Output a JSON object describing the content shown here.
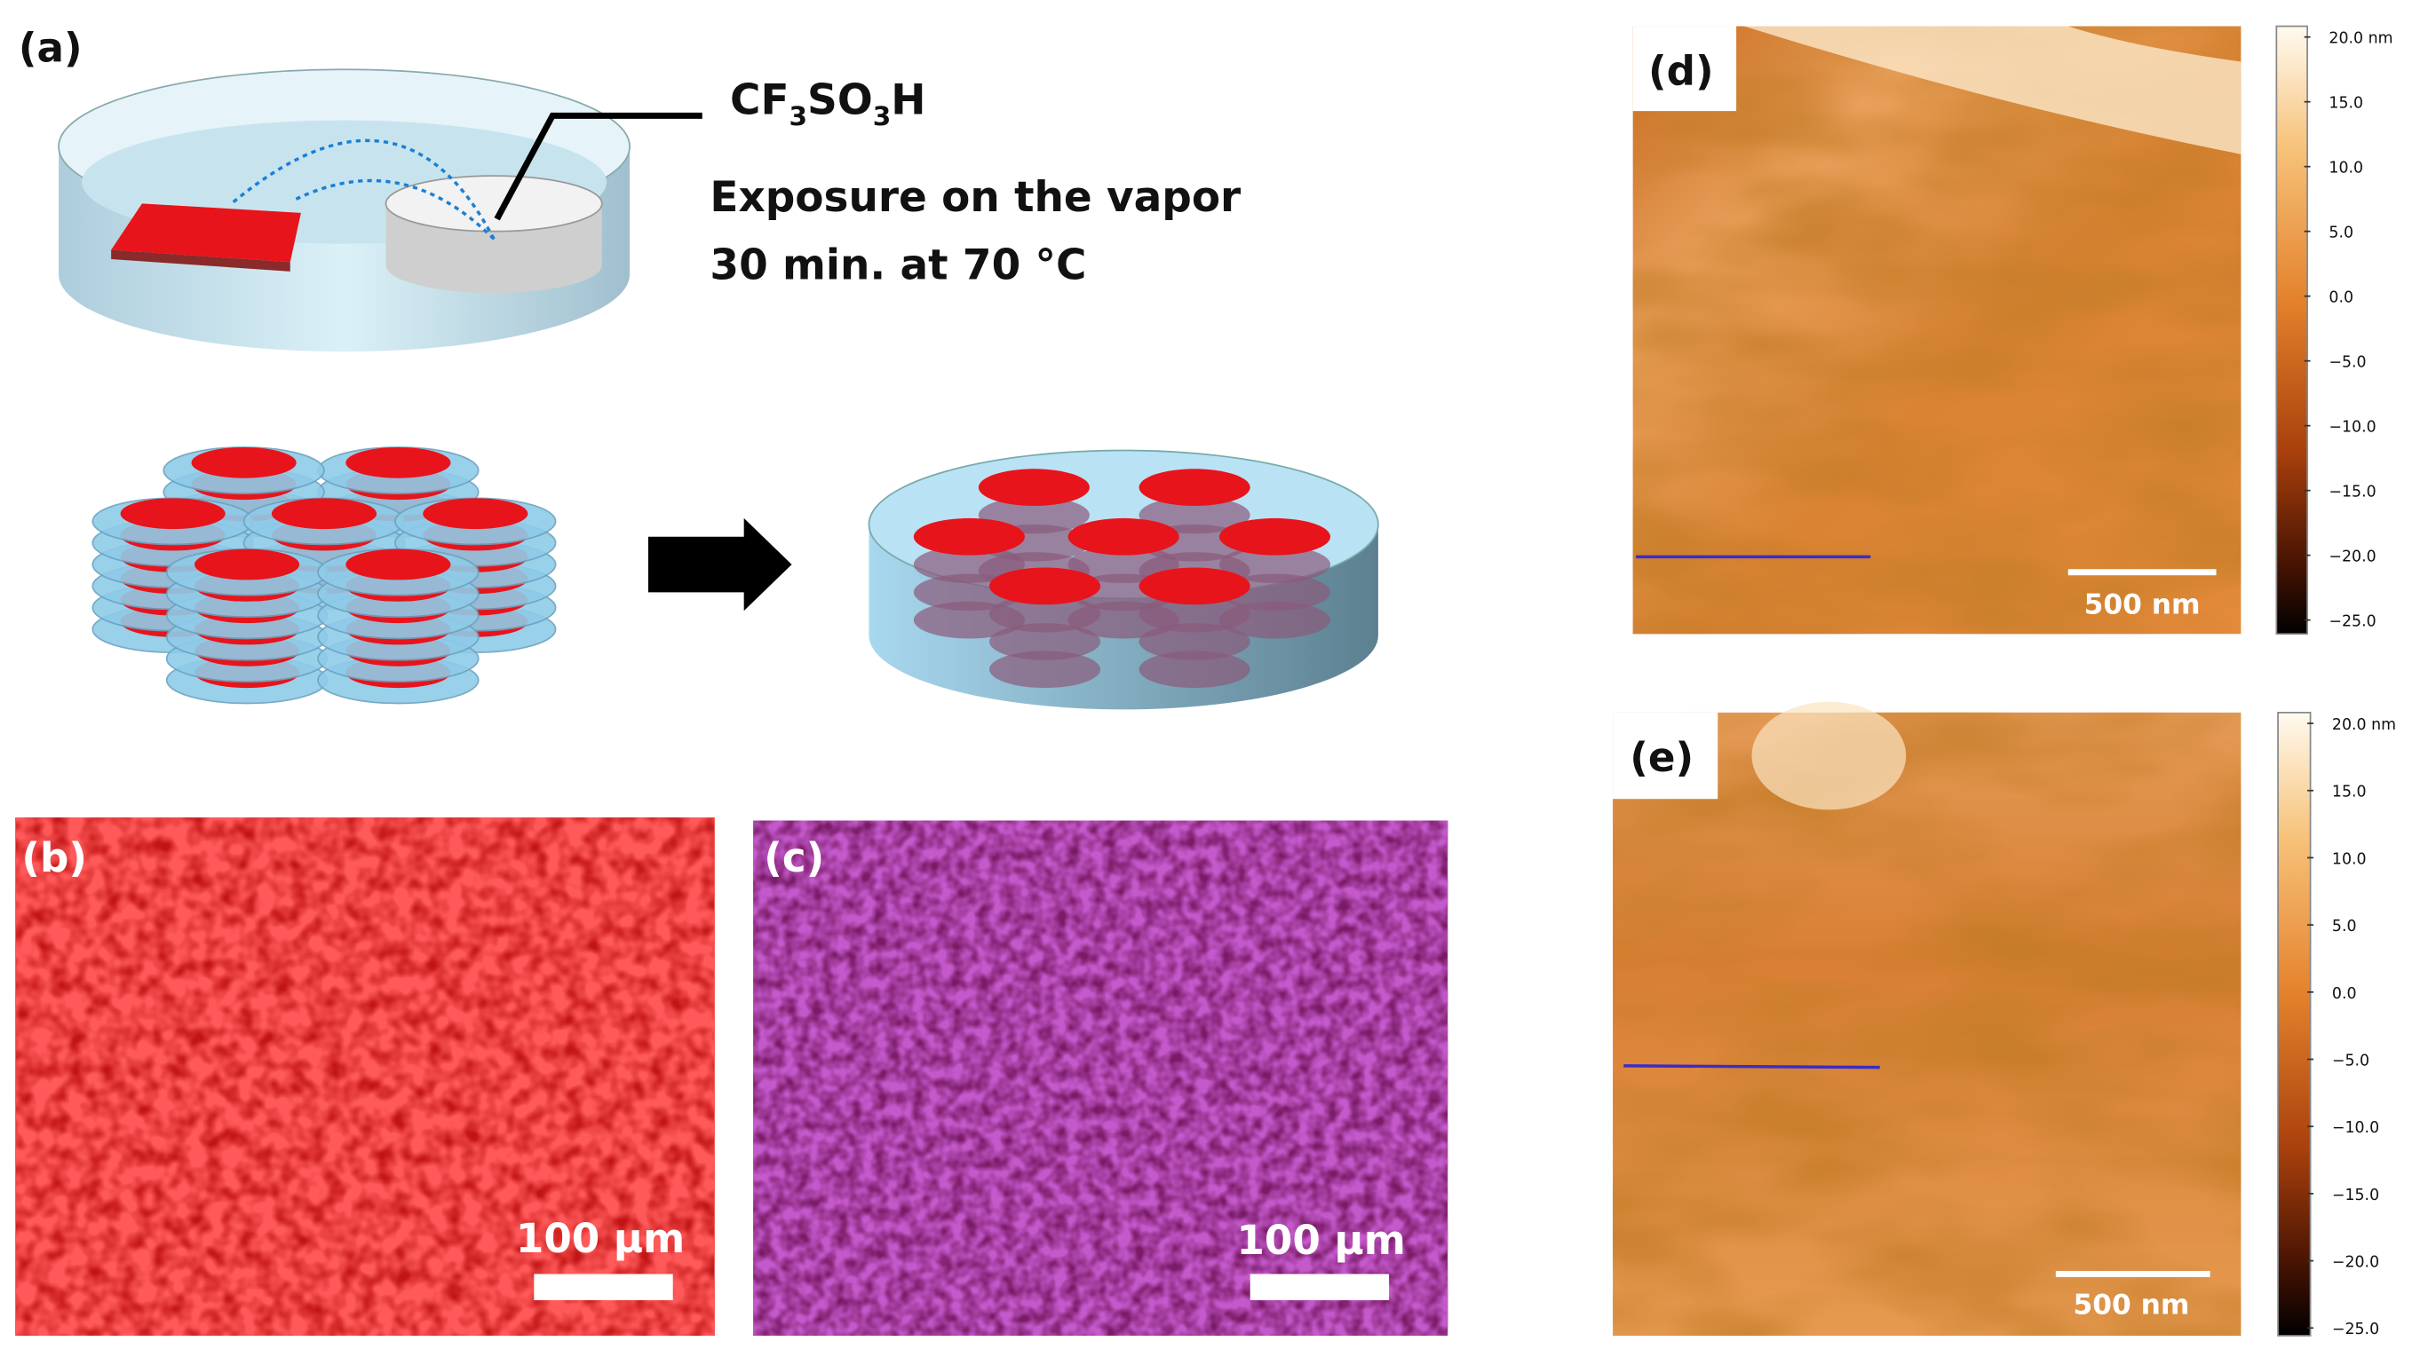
{
  "panel_a": {
    "label": "(a)",
    "formula": [
      "CF",
      "3",
      "SO",
      "3",
      "H"
    ],
    "caption_lines": [
      "Exposure on the vapor",
      "30 min. at 70 °C"
    ]
  },
  "panel_b": {
    "label": "(b)",
    "scale_bar": "100 µm"
  },
  "panel_c": {
    "label": "(c)",
    "scale_bar": "100 µm"
  },
  "panel_d": {
    "label": "(d)",
    "scale_bar": "500 nm",
    "colorbar_ticks": [
      "20.0 nm",
      "15.0",
      "10.0",
      "5.0",
      "0.0",
      "−5.0",
      "−10.0",
      "−15.0",
      "−20.0",
      "−25.0"
    ]
  },
  "panel_e": {
    "label": "(e)",
    "scale_bar": "500 nm",
    "colorbar_ticks": [
      "20.0 nm",
      "15.0",
      "10.0",
      "5.0",
      "0.0",
      "−5.0",
      "−10.0",
      "−15.0",
      "−20.0",
      "−25.0"
    ]
  }
}
